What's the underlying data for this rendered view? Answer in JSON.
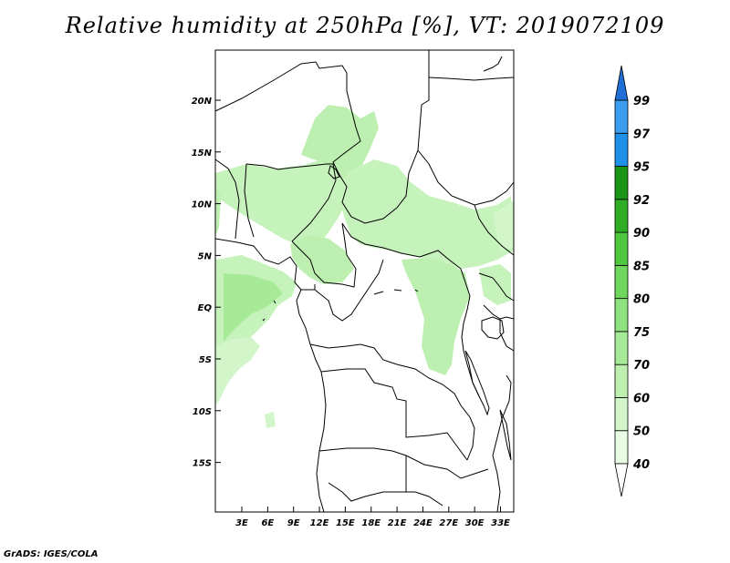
{
  "title": "Relative humidity at 250hPa [%], VT: 2019072109",
  "credit": "GrADS: IGES/COLA",
  "map": {
    "lat_ticks": [
      "20N",
      "15N",
      "10N",
      "5N",
      "EQ",
      "5S",
      "10S",
      "15S"
    ],
    "lon_ticks": [
      "3E",
      "6E",
      "9E",
      "12E",
      "15E",
      "18E",
      "21E",
      "24E",
      "27E",
      "30E",
      "33E"
    ]
  },
  "colorbar": {
    "levels": [
      {
        "label": "40",
        "color": "#e8fbe3"
      },
      {
        "label": "50",
        "color": "#d2f6c9"
      },
      {
        "label": "60",
        "color": "#bdf0b0"
      },
      {
        "label": "70",
        "color": "#a6ea98"
      },
      {
        "label": "75",
        "color": "#8fe37f"
      },
      {
        "label": "80",
        "color": "#6fd75e"
      },
      {
        "label": "85",
        "color": "#4fc83f"
      },
      {
        "label": "90",
        "color": "#2fae25"
      },
      {
        "label": "92",
        "color": "#1a9515"
      },
      {
        "label": "95",
        "color": "#1e90e8"
      },
      {
        "label": "97",
        "color": "#3b9cf0"
      },
      {
        "label": "99",
        "color": "#1f6fd6"
      }
    ],
    "top_arrow_color": "#1f6fd6",
    "bottom_arrow_color": "#ffffff"
  }
}
